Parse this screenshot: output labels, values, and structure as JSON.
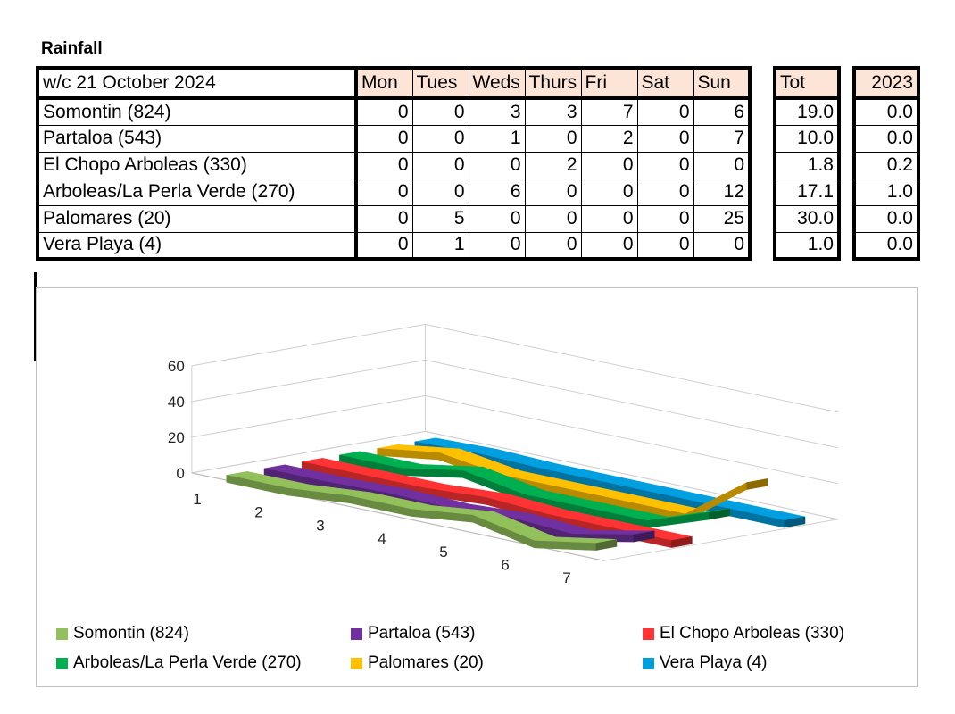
{
  "title": "Rainfall",
  "table": {
    "header": {
      "week": "w/c 21 October 2024",
      "days": [
        "Mon",
        "Tues",
        "Weds",
        "Thurs",
        "Fri",
        "Sat",
        "Sun"
      ],
      "total": "Tot",
      "prev_year": "2023"
    },
    "rows": [
      {
        "station": "Somontin (824)",
        "days": [
          0,
          0,
          3,
          3,
          7,
          0,
          6
        ],
        "total": "19.0",
        "prev_year": "0.0"
      },
      {
        "station": "Partaloa (543)",
        "days": [
          0,
          0,
          1,
          0,
          2,
          0,
          7
        ],
        "total": "10.0",
        "prev_year": "0.0"
      },
      {
        "station": "El Chopo Arboleas (330)",
        "days": [
          0,
          0,
          0,
          2,
          0,
          0,
          0
        ],
        "total": "1.8",
        "prev_year": "0.2"
      },
      {
        "station": "Arboleas/La Perla Verde (270)",
        "days": [
          0,
          0,
          6,
          0,
          0,
          0,
          12
        ],
        "total": "17.1",
        "prev_year": "1.0"
      },
      {
        "station": "Palomares (20)",
        "days": [
          0,
          5,
          0,
          0,
          0,
          0,
          25
        ],
        "total": "30.0",
        "prev_year": "0.0"
      },
      {
        "station": "Vera Playa (4)",
        "days": [
          0,
          1,
          0,
          0,
          0,
          0,
          0
        ],
        "total": "1.0",
        "prev_year": "0.0"
      }
    ]
  },
  "chart_data": {
    "type": "line",
    "variant": "3d-ribbon",
    "x": [
      1,
      2,
      3,
      4,
      5,
      6,
      7
    ],
    "ylim": [
      0,
      60
    ],
    "yticks": [
      0,
      20,
      40,
      60
    ],
    "grid": true,
    "legend_position": "bottom",
    "series": [
      {
        "name": "Somontin (824)",
        "values": [
          0,
          0,
          3,
          3,
          7,
          0,
          6
        ],
        "color": "#92c05a"
      },
      {
        "name": "Partaloa (543)",
        "values": [
          0,
          0,
          1,
          0,
          2,
          0,
          7
        ],
        "color": "#7030a0"
      },
      {
        "name": "El Chopo Arboleas (330)",
        "values": [
          0,
          0,
          0,
          2,
          0,
          0,
          0
        ],
        "color": "#ff3333"
      },
      {
        "name": "Arboleas/La Perla Verde (270)",
        "values": [
          0,
          0,
          6,
          0,
          0,
          0,
          12
        ],
        "color": "#00b050"
      },
      {
        "name": "Palomares (20)",
        "values": [
          0,
          5,
          0,
          0,
          0,
          0,
          25
        ],
        "color": "#ffc000"
      },
      {
        "name": "Vera Playa (4)",
        "values": [
          0,
          1,
          0,
          0,
          0,
          0,
          0
        ],
        "color": "#00a0e0"
      }
    ]
  }
}
